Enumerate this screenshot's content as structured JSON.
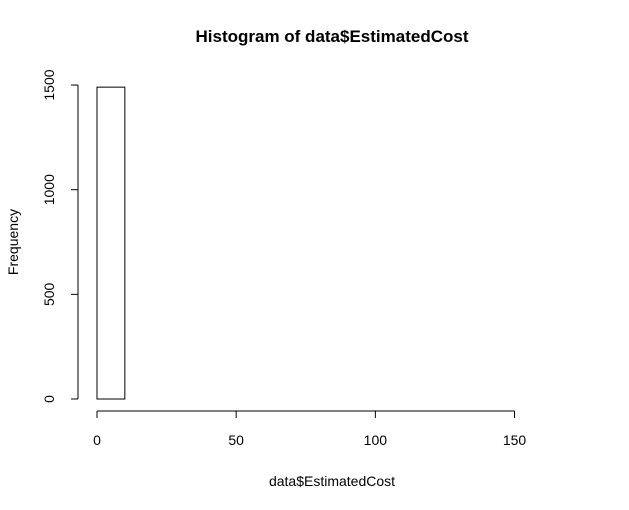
{
  "chart_data": {
    "type": "bar",
    "title": "Histogram of data$EstimatedCost",
    "xlabel": "data$EstimatedCost",
    "ylabel": "Frequency",
    "xlim": [
      0,
      170
    ],
    "ylim": [
      0,
      1500
    ],
    "x_ticks": [
      0,
      50,
      100,
      150
    ],
    "y_ticks": [
      0,
      500,
      1000,
      1500
    ],
    "bins": [
      {
        "from": 0,
        "to": 10,
        "count": 1490
      },
      {
        "from": 10,
        "to": 20,
        "count": 0
      },
      {
        "from": 20,
        "to": 30,
        "count": 0
      },
      {
        "from": 30,
        "to": 40,
        "count": 0
      },
      {
        "from": 40,
        "to": 50,
        "count": 0
      },
      {
        "from": 50,
        "to": 60,
        "count": 0
      },
      {
        "from": 60,
        "to": 70,
        "count": 0
      },
      {
        "from": 70,
        "to": 80,
        "count": 0
      },
      {
        "from": 80,
        "to": 90,
        "count": 0
      },
      {
        "from": 90,
        "to": 100,
        "count": 0
      },
      {
        "from": 100,
        "to": 110,
        "count": 0
      },
      {
        "from": 110,
        "to": 120,
        "count": 0
      },
      {
        "from": 120,
        "to": 130,
        "count": 0
      },
      {
        "from": 130,
        "to": 140,
        "count": 0
      },
      {
        "from": 140,
        "to": 150,
        "count": 0
      },
      {
        "from": 150,
        "to": 160,
        "count": 0
      },
      {
        "from": 160,
        "to": 170,
        "count": 0
      }
    ],
    "grid": false,
    "legend": "none"
  }
}
